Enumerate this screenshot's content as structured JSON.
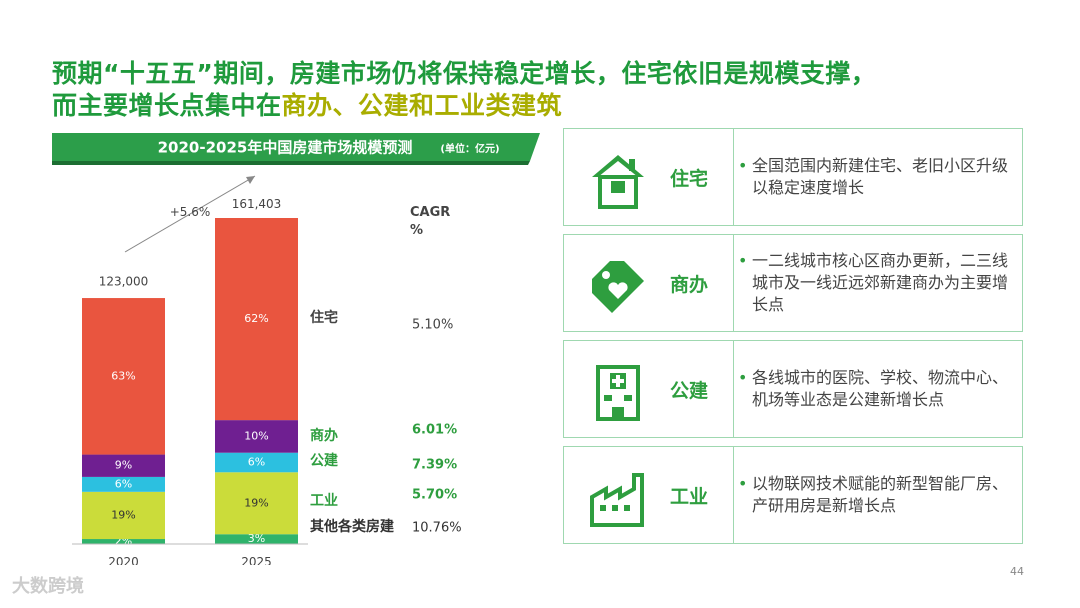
{
  "header": {
    "title_line1": "预期“十五五”期间，房建市场仍将保持稳定增长，住宅依旧是规模支撑，",
    "title_line2a": "而主要增长点集中在",
    "title_line2b": "商办、公建和工业类建筑"
  },
  "chart_data": {
    "type": "stacked-bar",
    "title": "2020-2025年中国房建市场规模预测",
    "subtitle": "(单位：亿元)",
    "categories": [
      "2020",
      "2025"
    ],
    "totals": {
      "values": [
        123000,
        161403
      ],
      "value_labels": [
        "123,000",
        "161,403"
      ]
    },
    "annotation": "+5.6%",
    "cagr_title": "CAGR",
    "cagr_unit": "%",
    "series": [
      {
        "name": "其他各类房建",
        "color": "#2fb36b",
        "label_color": "#333333",
        "text_color": "#ffffff",
        "values": [
          2,
          3
        ],
        "value_labels": [
          "2%",
          "3%"
        ],
        "cagr": 10.76,
        "cagr_label": "10.76%"
      },
      {
        "name": "工业",
        "color": "#cbdc3a",
        "label_color": "#2e9e3f",
        "text_color": "#333333",
        "values": [
          19,
          19
        ],
        "value_labels": [
          "19%",
          "19%"
        ],
        "cagr": 5.7,
        "cagr_label": "5.70%"
      },
      {
        "name": "公建",
        "color": "#2cc0e0",
        "label_color": "#2e9e3f",
        "text_color": "#ffffff",
        "values": [
          6,
          6
        ],
        "value_labels": [
          "6%",
          "6%"
        ],
        "cagr": 7.39,
        "cagr_label": "7.39%"
      },
      {
        "name": "商办",
        "color": "#6f1f91",
        "label_color": "#2e9e3f",
        "text_color": "#ffffff",
        "values": [
          9,
          10
        ],
        "value_labels": [
          "9%",
          "10%"
        ],
        "cagr": 6.01,
        "cagr_label": "6.01%"
      },
      {
        "name": "住宅",
        "color": "#e9553f",
        "label_color": "#444444",
        "text_color": "#ffffff",
        "values": [
          63,
          62
        ],
        "value_labels": [
          "63%",
          "62%"
        ],
        "cagr": 5.1,
        "cagr_label": "5.10%"
      }
    ]
  },
  "cards": [
    {
      "label": "住宅",
      "text": "全国范围内新建住宅、老旧小区升级以稳定速度增长"
    },
    {
      "label": "商办",
      "text": "一二线城市核心区商办更新，二三线城市及一线近远郊新建商办为主要增长点"
    },
    {
      "label": "公建",
      "text": "各线城市的医院、学校、物流中心、机场等业态是公建新增长点"
    },
    {
      "label": "工业",
      "text": "以物联网技术赋能的新型智能厂房、产研用房是新增长点"
    }
  ],
  "footer": {
    "page_number": "44",
    "logo": "大数跨境"
  }
}
